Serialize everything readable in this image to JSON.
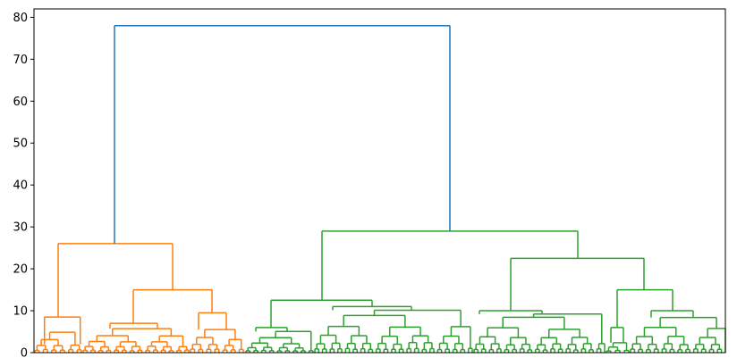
{
  "chart_data": {
    "type": "dendrogram",
    "title": "",
    "xlabel": "",
    "ylabel": "",
    "ylim": [
      0,
      82
    ],
    "y_ticks": [
      0,
      10,
      20,
      30,
      40,
      50,
      60,
      70,
      80
    ],
    "y_tick_labels": [
      "0",
      "10",
      "20",
      "30",
      "40",
      "50",
      "60",
      "70",
      "80"
    ],
    "x_tick_labels_visible": false,
    "grid": false,
    "leaf_count": 186,
    "colors": {
      "root_link": "#1f77b4",
      "cluster_1": "#ff7f0e",
      "cluster_2": "#2ca02c",
      "axes": "#000000"
    },
    "merges": [
      {
        "name": "root",
        "height": 78,
        "color": "root_link",
        "children": [
          "cluster_1",
          "cluster_2"
        ]
      },
      {
        "name": "cluster_1",
        "height": 26,
        "color": "cluster_1",
        "children": [
          "c1_left",
          "c1_right"
        ]
      },
      {
        "name": "c1_left",
        "height": 8.5,
        "color": "cluster_1"
      },
      {
        "name": "c1_right",
        "height": 15,
        "color": "cluster_1",
        "children": [
          "c1_right_a",
          "c1_right_b"
        ]
      },
      {
        "name": "c1_right_a",
        "height": 7,
        "color": "cluster_1"
      },
      {
        "name": "c1_right_b",
        "height": 9.5,
        "color": "cluster_1"
      },
      {
        "name": "cluster_2",
        "height": 29,
        "color": "cluster_2",
        "children": [
          "c2_left",
          "c2_right"
        ]
      },
      {
        "name": "c2_left",
        "height": 12.5,
        "color": "cluster_2",
        "children": [
          "c2_left_a",
          "c2_left_b"
        ]
      },
      {
        "name": "c2_left_a",
        "height": 6,
        "color": "cluster_2"
      },
      {
        "name": "c2_left_b",
        "height": 11,
        "color": "cluster_2"
      },
      {
        "name": "c2_right",
        "height": 22.5,
        "color": "cluster_2",
        "children": [
          "c2_right_a",
          "c2_right_b"
        ]
      },
      {
        "name": "c2_right_a",
        "height": 10,
        "color": "cluster_2"
      },
      {
        "name": "c2_right_b",
        "height": 15,
        "color": "cluster_2",
        "children": [
          "c2_right_b1",
          "c2_right_b2"
        ]
      },
      {
        "name": "c2_right_b1",
        "height": 6,
        "color": "cluster_2"
      },
      {
        "name": "c2_right_b2",
        "height": 10,
        "color": "cluster_2"
      }
    ]
  }
}
